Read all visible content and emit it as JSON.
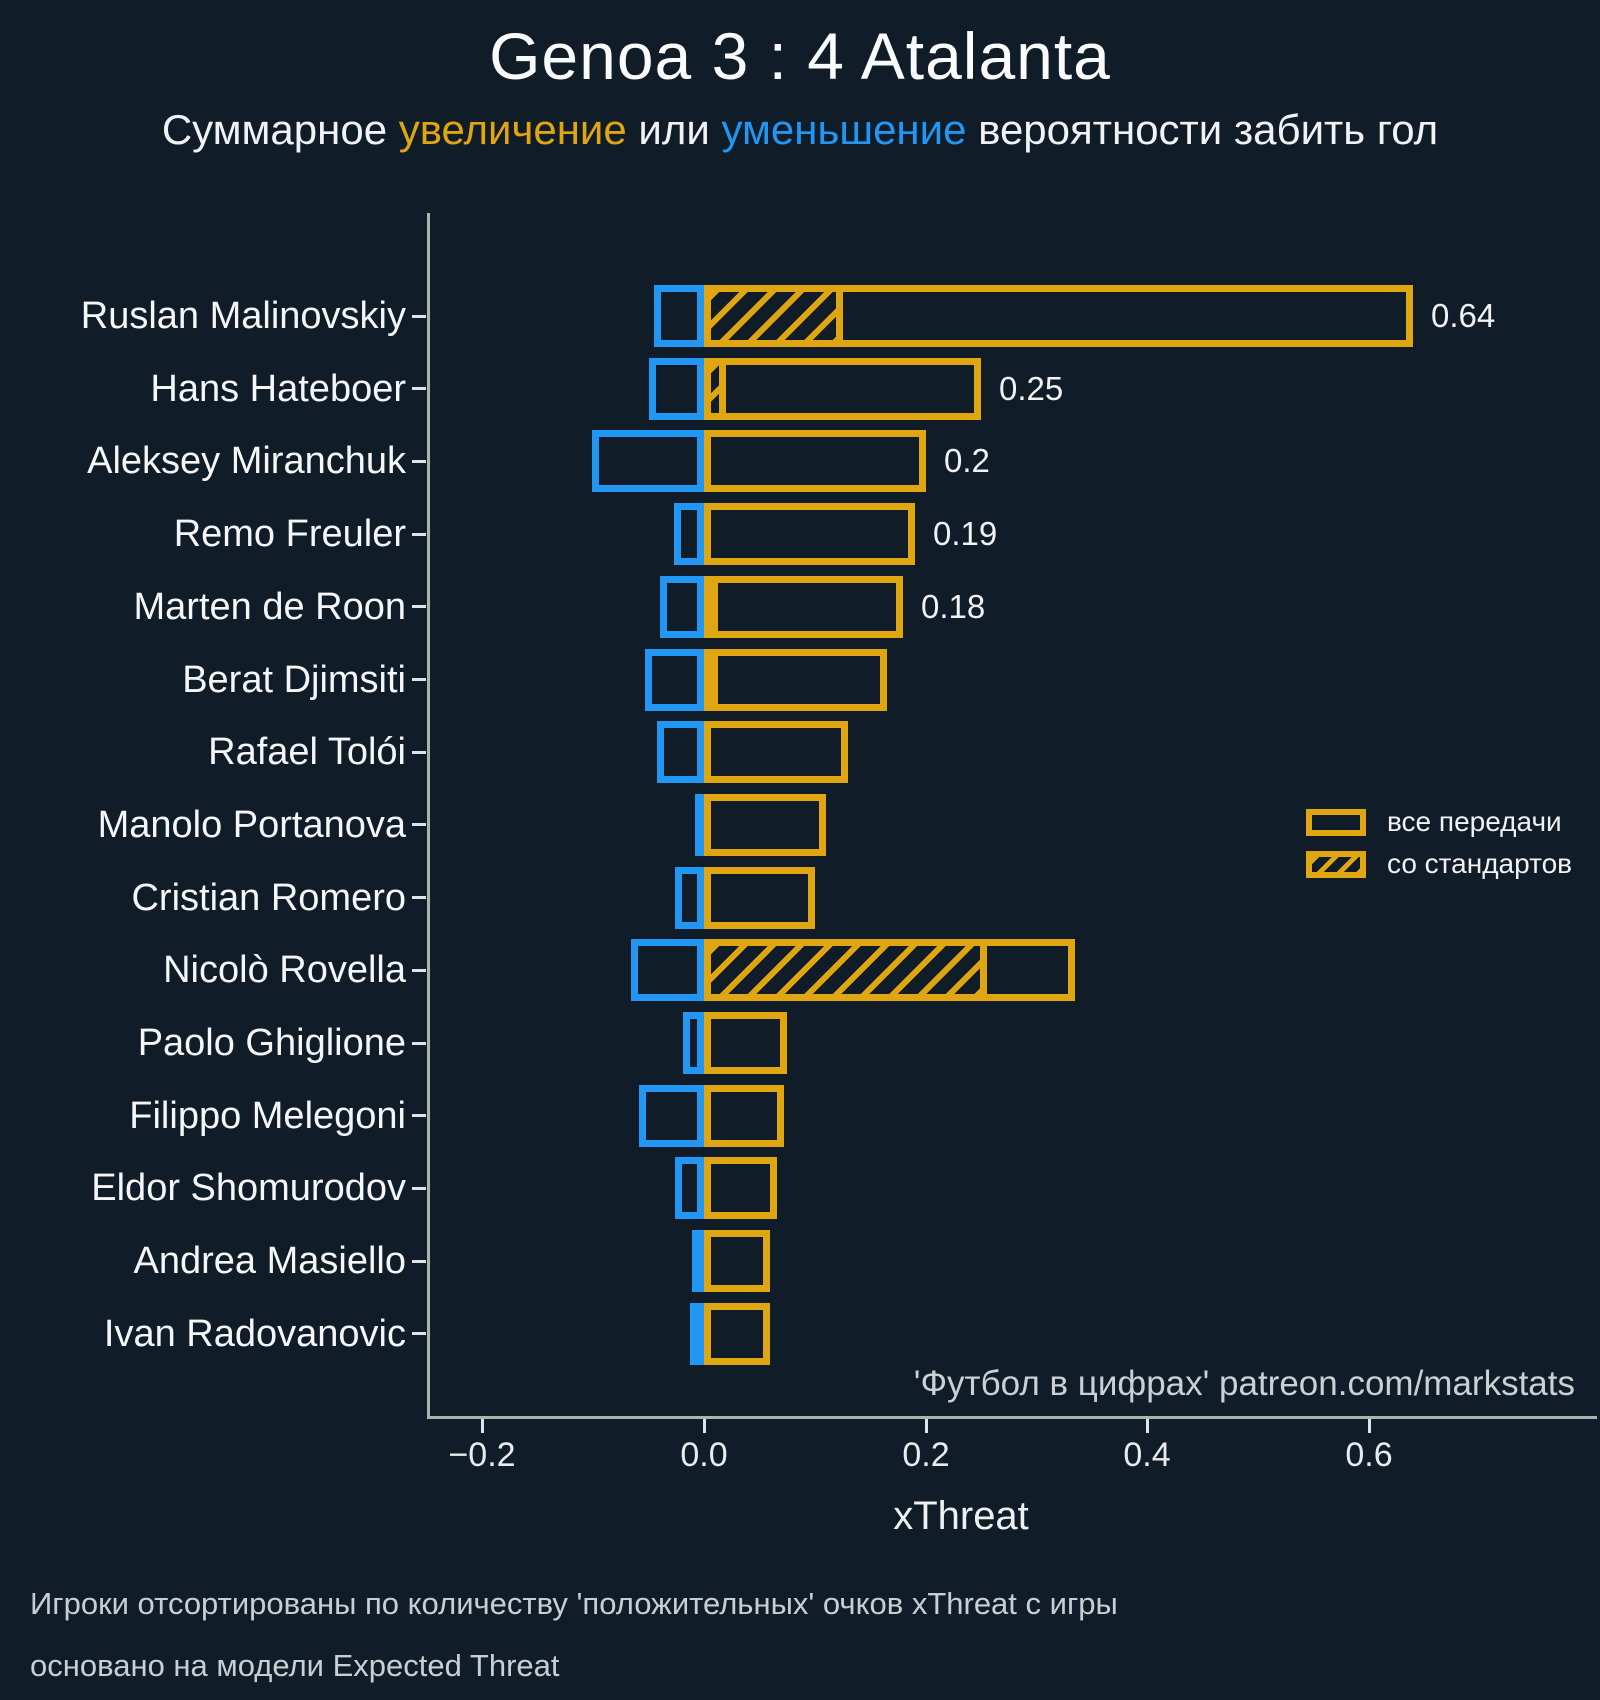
{
  "title": "Genoa 3 : 4 Atalanta",
  "subtitle": {
    "part1": "Суммарное ",
    "increase": "увеличение",
    "part2": " или ",
    "decrease": "уменьшение",
    "part3": " вероятности забить гол"
  },
  "colors": {
    "background": "#101c27",
    "positive": "#dfa612",
    "negative": "#2196f3",
    "spine": "#a6b6af",
    "tick": "#dfe3e4",
    "text": "#f2f4f5",
    "muted": "#c9ced2"
  },
  "legend": [
    {
      "label": "все передачи",
      "hatched": false
    },
    {
      "label": "со стандартов",
      "hatched": true
    }
  ],
  "credit": "'Футбол в цифрах' patreon.com/markstats",
  "footnotes": [
    "Игроки отсортированы по количеству 'положительных' очков xThreat с игры",
    "основано на модели Expected Threat"
  ],
  "chart_data": {
    "type": "bar",
    "orientation": "horizontal",
    "title": "Genoa 3 : 4 Atalanta",
    "xlabel": "xThreat",
    "xlim": [
      -0.25,
      0.8
    ],
    "xticks": [
      -0.2,
      0.0,
      0.2,
      0.4,
      0.6
    ],
    "xtick_labels": [
      "−0.2",
      "0.0",
      "0.2",
      "0.4",
      "0.6"
    ],
    "grid": false,
    "legend_position": "center-right",
    "series_note": "positive = увеличение xT (желтый контур), negative = уменьшение xT (синий контур), set_pieces = часть positive со стандартов (штриховка)",
    "players": [
      {
        "name": "Ruslan Malinovskiy",
        "positive": 0.64,
        "negative": -0.045,
        "set_pieces": 0.125,
        "label": "0.64"
      },
      {
        "name": "Hans Hateboer",
        "positive": 0.25,
        "negative": -0.05,
        "set_pieces": 0.02,
        "label": "0.25"
      },
      {
        "name": "Aleksey Miranchuk",
        "positive": 0.2,
        "negative": -0.101,
        "set_pieces": 0,
        "label": "0.2"
      },
      {
        "name": "Remo Freuler",
        "positive": 0.19,
        "negative": -0.027,
        "set_pieces": 0,
        "label": "0.19"
      },
      {
        "name": "Marten de Roon",
        "positive": 0.18,
        "negative": -0.04,
        "set_pieces": 0.008,
        "label": "0.18"
      },
      {
        "name": "Berat Djimsiti",
        "positive": 0.165,
        "negative": -0.053,
        "set_pieces": 0.008,
        "label": null
      },
      {
        "name": "Rafael Tolói",
        "positive": 0.13,
        "negative": -0.042,
        "set_pieces": 0,
        "label": null
      },
      {
        "name": "Manolo Portanova",
        "positive": 0.11,
        "negative": -0.008,
        "set_pieces": 0,
        "label": null
      },
      {
        "name": "Cristian Romero",
        "positive": 0.1,
        "negative": -0.026,
        "set_pieces": 0,
        "label": null
      },
      {
        "name": "Nicolò Rovella",
        "positive": 0.335,
        "negative": -0.066,
        "set_pieces": 0.255,
        "label": null
      },
      {
        "name": "Paolo Ghiglione",
        "positive": 0.075,
        "negative": -0.019,
        "set_pieces": 0,
        "label": null
      },
      {
        "name": "Filippo Melegoni",
        "positive": 0.072,
        "negative": -0.059,
        "set_pieces": 0,
        "label": null
      },
      {
        "name": "Eldor Shomurodov",
        "positive": 0.066,
        "negative": -0.026,
        "set_pieces": 0,
        "label": null
      },
      {
        "name": "Andrea Masiello",
        "positive": 0.06,
        "negative": -0.011,
        "set_pieces": 0,
        "label": null
      },
      {
        "name": "Ivan Radovanovic",
        "positive": 0.06,
        "negative": -0.013,
        "set_pieces": 0,
        "label": null
      }
    ]
  }
}
